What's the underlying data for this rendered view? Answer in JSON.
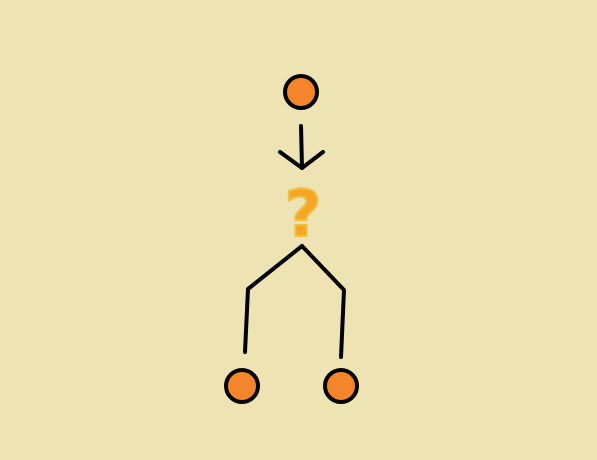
{
  "diagram": {
    "background_color": "#ede3b3",
    "node_color": "#f5852a",
    "node_stroke": "#000000",
    "line_color": "#000000",
    "question_mark": {
      "text": "?",
      "color": "#f5a623",
      "outline_color": "#f0c04a"
    },
    "nodes": [
      {
        "name": "top-node",
        "icon": "circle"
      },
      {
        "name": "bottom-left-node",
        "icon": "circle"
      },
      {
        "name": "bottom-right-node",
        "icon": "circle"
      }
    ],
    "connectors": [
      {
        "name": "down-arrow",
        "type": "arrow",
        "from": "top-node",
        "to": "question-mark"
      },
      {
        "name": "left-branch",
        "type": "line",
        "from": "question-mark",
        "to": "bottom-left-node"
      },
      {
        "name": "right-branch",
        "type": "line",
        "from": "question-mark",
        "to": "bottom-right-node"
      }
    ]
  }
}
